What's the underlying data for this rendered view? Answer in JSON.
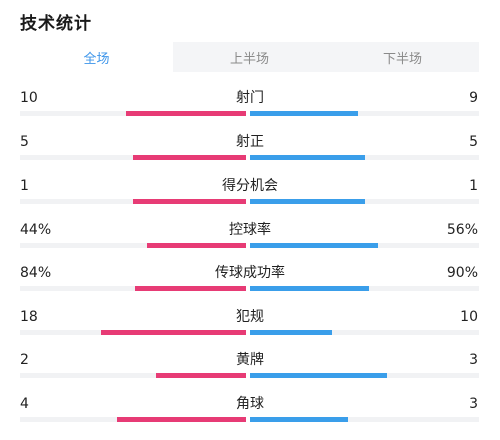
{
  "title": "技术统计",
  "tabs": [
    {
      "label": "全场",
      "active": true
    },
    {
      "label": "上半场",
      "active": false
    },
    {
      "label": "下半场",
      "active": false
    }
  ],
  "colors": {
    "home": "#e73b75",
    "away": "#3a9eea",
    "accent": "#3d95ea"
  },
  "stats": [
    {
      "label": "射门",
      "left": "10",
      "right": "9",
      "left_fill": 0.53,
      "right_fill": 0.47
    },
    {
      "label": "射正",
      "left": "5",
      "right": "5",
      "left_fill": 0.5,
      "right_fill": 0.5
    },
    {
      "label": "得分机会",
      "left": "1",
      "right": "1",
      "left_fill": 0.5,
      "right_fill": 0.5
    },
    {
      "label": "控球率",
      "left": "44%",
      "right": "56%",
      "left_fill": 0.44,
      "right_fill": 0.56
    },
    {
      "label": "传球成功率",
      "left": "84%",
      "right": "90%",
      "left_fill": 0.49,
      "right_fill": 0.52
    },
    {
      "label": "犯规",
      "left": "18",
      "right": "10",
      "left_fill": 0.64,
      "right_fill": 0.36
    },
    {
      "label": "黄牌",
      "left": "2",
      "right": "3",
      "left_fill": 0.4,
      "right_fill": 0.6
    },
    {
      "label": "角球",
      "left": "4",
      "right": "3",
      "left_fill": 0.57,
      "right_fill": 0.43
    }
  ]
}
